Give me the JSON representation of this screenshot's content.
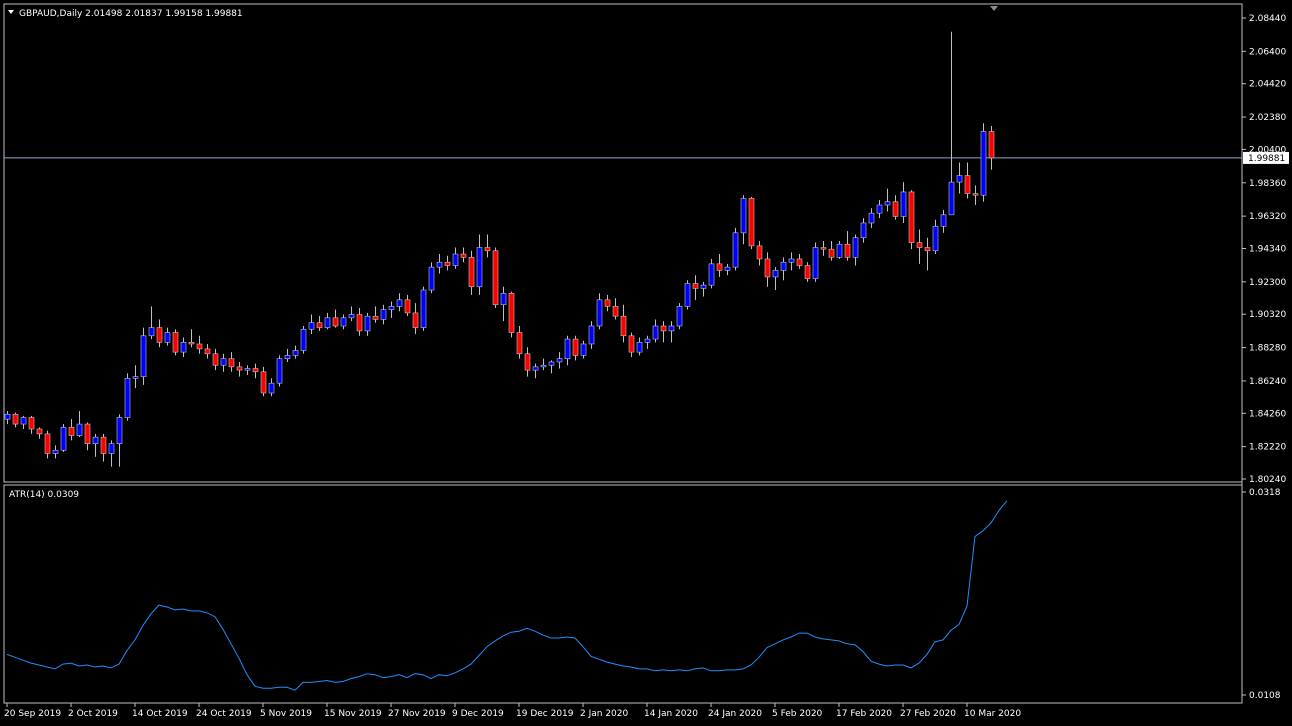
{
  "main_panel": {
    "title": "GBPAUD,Daily  2.01498 2.01837 1.99158 1.99881",
    "collapse_icon": "triangle-down-icon"
  },
  "atr_panel": {
    "title": "ATR(14) 0.0309"
  },
  "colors": {
    "background": "#000000",
    "bull_body": "#0000ff",
    "bear_body": "#ff0000",
    "wick": "#c0c0c0",
    "bid_line": "#8fa6c8",
    "atr_line": "#1e90ff",
    "frame": "#c0c0c0",
    "text": "#ffffff"
  },
  "chart_data": [
    {
      "type": "candlestick",
      "symbol": "GBPAUD",
      "timeframe": "Daily",
      "last_ohlc": [
        2.01498,
        2.01837,
        1.99158,
        1.99881
      ],
      "current_price": 1.99881,
      "current_price_label": "1.99881",
      "ylim": [
        1.8024,
        2.0844
      ],
      "y_ticks": [
        "2.08440",
        "2.06400",
        "2.04420",
        "2.02380",
        "2.00400",
        "1.98360",
        "1.96320",
        "1.94340",
        "1.92300",
        "1.90320",
        "1.88280",
        "1.86240",
        "1.84260",
        "1.82220",
        "1.80240"
      ],
      "x_ticks": [
        "20 Sep 2019",
        "2 Oct 2019",
        "14 Oct 2019",
        "24 Oct 2019",
        "5 Nov 2019",
        "15 Nov 2019",
        "27 Nov 2019",
        "9 Dec 2019",
        "19 Dec 2019",
        "2 Jan 2020",
        "14 Jan 2020",
        "24 Jan 2020",
        "5 Feb 2020",
        "17 Feb 2020",
        "27 Feb 2020",
        "10 Mar 2020"
      ],
      "x_tick_candle_index": [
        0,
        8,
        16,
        24,
        32,
        40,
        48,
        56,
        64,
        72,
        80,
        88,
        96,
        104,
        112,
        120
      ],
      "candles": [
        [
          1.839,
          1.844,
          1.836,
          1.842
        ],
        [
          1.842,
          1.843,
          1.834,
          1.836
        ],
        [
          1.836,
          1.841,
          1.833,
          1.84
        ],
        [
          1.84,
          1.841,
          1.83,
          1.833
        ],
        [
          1.833,
          1.834,
          1.827,
          1.83
        ],
        [
          1.83,
          1.832,
          1.815,
          1.818
        ],
        [
          1.818,
          1.823,
          1.815,
          1.82
        ],
        [
          1.82,
          1.836,
          1.819,
          1.834
        ],
        [
          1.834,
          1.839,
          1.826,
          1.829
        ],
        [
          1.829,
          1.844,
          1.828,
          1.836
        ],
        [
          1.836,
          1.837,
          1.82,
          1.824
        ],
        [
          1.824,
          1.83,
          1.816,
          1.828
        ],
        [
          1.828,
          1.83,
          1.813,
          1.818
        ],
        [
          1.818,
          1.826,
          1.81,
          1.824
        ],
        [
          1.824,
          1.842,
          1.81,
          1.84
        ],
        [
          1.84,
          1.867,
          1.838,
          1.864
        ],
        [
          1.864,
          1.872,
          1.858,
          1.865
        ],
        [
          1.865,
          1.895,
          1.86,
          1.89
        ],
        [
          1.89,
          1.908,
          1.888,
          1.895
        ],
        [
          1.895,
          1.9,
          1.883,
          1.886
        ],
        [
          1.886,
          1.895,
          1.884,
          1.892
        ],
        [
          1.892,
          1.894,
          1.878,
          1.88
        ],
        [
          1.88,
          1.889,
          1.877,
          1.886
        ],
        [
          1.886,
          1.894,
          1.883,
          1.885
        ],
        [
          1.885,
          1.89,
          1.879,
          1.882
        ],
        [
          1.882,
          1.885,
          1.876,
          1.879
        ],
        [
          1.879,
          1.882,
          1.869,
          1.872
        ],
        [
          1.872,
          1.879,
          1.868,
          1.876
        ],
        [
          1.876,
          1.88,
          1.868,
          1.871
        ],
        [
          1.871,
          1.874,
          1.865,
          1.869
        ],
        [
          1.869,
          1.872,
          1.866,
          1.87
        ],
        [
          1.87,
          1.873,
          1.864,
          1.868
        ],
        [
          1.868,
          1.871,
          1.853,
          1.855
        ],
        [
          1.855,
          1.864,
          1.853,
          1.861
        ],
        [
          1.861,
          1.878,
          1.859,
          1.876
        ],
        [
          1.876,
          1.882,
          1.874,
          1.878
        ],
        [
          1.878,
          1.884,
          1.876,
          1.881
        ],
        [
          1.881,
          1.896,
          1.879,
          1.894
        ],
        [
          1.894,
          1.903,
          1.891,
          1.898
        ],
        [
          1.898,
          1.902,
          1.893,
          1.895
        ],
        [
          1.895,
          1.904,
          1.894,
          1.901
        ],
        [
          1.901,
          1.906,
          1.895,
          1.896
        ],
        [
          1.896,
          1.903,
          1.894,
          1.901
        ],
        [
          1.901,
          1.908,
          1.899,
          1.903
        ],
        [
          1.903,
          1.907,
          1.89,
          1.893
        ],
        [
          1.893,
          1.904,
          1.89,
          1.902
        ],
        [
          1.902,
          1.908,
          1.898,
          1.9
        ],
        [
          1.9,
          1.909,
          1.897,
          1.906
        ],
        [
          1.906,
          1.911,
          1.901,
          1.908
        ],
        [
          1.908,
          1.916,
          1.905,
          1.912
        ],
        [
          1.912,
          1.915,
          1.902,
          1.904
        ],
        [
          1.904,
          1.91,
          1.891,
          1.895
        ],
        [
          1.895,
          1.92,
          1.893,
          1.918
        ],
        [
          1.918,
          1.935,
          1.916,
          1.932
        ],
        [
          1.932,
          1.94,
          1.928,
          1.935
        ],
        [
          1.935,
          1.939,
          1.93,
          1.933
        ],
        [
          1.933,
          1.944,
          1.931,
          1.94
        ],
        [
          1.94,
          1.944,
          1.935,
          1.938
        ],
        [
          1.938,
          1.942,
          1.915,
          1.92
        ],
        [
          1.92,
          1.952,
          1.915,
          1.944
        ],
        [
          1.944,
          1.952,
          1.938,
          1.942
        ],
        [
          1.942,
          1.944,
          1.907,
          1.909
        ],
        [
          1.909,
          1.92,
          1.899,
          1.916
        ],
        [
          1.916,
          1.917,
          1.889,
          1.892
        ],
        [
          1.892,
          1.896,
          1.876,
          1.879
        ],
        [
          1.879,
          1.883,
          1.865,
          1.869
        ],
        [
          1.869,
          1.873,
          1.864,
          1.871
        ],
        [
          1.871,
          1.876,
          1.869,
          1.872
        ],
        [
          1.872,
          1.875,
          1.867,
          1.874
        ],
        [
          1.874,
          1.88,
          1.87,
          1.876
        ],
        [
          1.876,
          1.89,
          1.872,
          1.888
        ],
        [
          1.888,
          1.89,
          1.875,
          1.878
        ],
        [
          1.878,
          1.887,
          1.876,
          1.885
        ],
        [
          1.885,
          1.899,
          1.882,
          1.896
        ],
        [
          1.896,
          1.916,
          1.894,
          1.912
        ],
        [
          1.912,
          1.915,
          1.905,
          1.908
        ],
        [
          1.908,
          1.913,
          1.9,
          1.902
        ],
        [
          1.902,
          1.909,
          1.886,
          1.89
        ],
        [
          1.89,
          1.892,
          1.877,
          1.88
        ],
        [
          1.88,
          1.889,
          1.878,
          1.886
        ],
        [
          1.886,
          1.89,
          1.882,
          1.888
        ],
        [
          1.888,
          1.9,
          1.886,
          1.896
        ],
        [
          1.896,
          1.899,
          1.886,
          1.893
        ],
        [
          1.893,
          1.899,
          1.886,
          1.896
        ],
        [
          1.896,
          1.91,
          1.894,
          1.908
        ],
        [
          1.908,
          1.924,
          1.906,
          1.922
        ],
        [
          1.922,
          1.927,
          1.912,
          1.919
        ],
        [
          1.919,
          1.923,
          1.914,
          1.921
        ],
        [
          1.921,
          1.937,
          1.919,
          1.934
        ],
        [
          1.934,
          1.94,
          1.926,
          1.93
        ],
        [
          1.93,
          1.934,
          1.927,
          1.932
        ],
        [
          1.932,
          1.956,
          1.93,
          1.953
        ],
        [
          1.953,
          1.976,
          1.946,
          1.974
        ],
        [
          1.974,
          1.975,
          1.943,
          1.945
        ],
        [
          1.945,
          1.948,
          1.933,
          1.937
        ],
        [
          1.937,
          1.941,
          1.92,
          1.926
        ],
        [
          1.926,
          1.932,
          1.918,
          1.93
        ],
        [
          1.93,
          1.938,
          1.924,
          1.935
        ],
        [
          1.935,
          1.941,
          1.93,
          1.937
        ],
        [
          1.937,
          1.94,
          1.931,
          1.933
        ],
        [
          1.933,
          1.935,
          1.923,
          1.925
        ],
        [
          1.925,
          1.947,
          1.923,
          1.944
        ],
        [
          1.944,
          1.948,
          1.939,
          1.943
        ],
        [
          1.943,
          1.948,
          1.936,
          1.938
        ],
        [
          1.938,
          1.948,
          1.937,
          1.946
        ],
        [
          1.946,
          1.954,
          1.936,
          1.938
        ],
        [
          1.938,
          1.952,
          1.933,
          1.95
        ],
        [
          1.95,
          1.962,
          1.947,
          1.959
        ],
        [
          1.959,
          1.968,
          1.956,
          1.965
        ],
        [
          1.965,
          1.973,
          1.962,
          1.97
        ],
        [
          1.97,
          1.98,
          1.966,
          1.972
        ],
        [
          1.972,
          1.976,
          1.961,
          1.963
        ],
        [
          1.963,
          1.984,
          1.959,
          1.978
        ],
        [
          1.978,
          1.979,
          1.943,
          1.947
        ],
        [
          1.947,
          1.955,
          1.934,
          1.944
        ],
        [
          1.944,
          1.95,
          1.93,
          1.942
        ],
        [
          1.942,
          1.961,
          1.94,
          1.957
        ],
        [
          1.957,
          1.967,
          1.953,
          1.964
        ],
        [
          1.964,
          2.076,
          1.965,
          1.984
        ],
        [
          1.984,
          1.996,
          1.977,
          1.988
        ],
        [
          1.988,
          1.996,
          1.974,
          1.977
        ],
        [
          1.977,
          1.982,
          1.97,
          1.976
        ],
        [
          1.976,
          2.02,
          1.972,
          2.015
        ],
        [
          2.01498,
          2.01837,
          1.99158,
          1.99881
        ]
      ]
    },
    {
      "type": "line",
      "name": "ATR(14)",
      "current_value": 0.0309,
      "ylim": [
        0.0108,
        0.0318
      ],
      "y_ticks": [
        "0.0318",
        "0.0108"
      ],
      "values": [
        0.015,
        0.0147,
        0.0144,
        0.0141,
        0.0139,
        0.0137,
        0.0135,
        0.014,
        0.0141,
        0.0138,
        0.0139,
        0.0137,
        0.0138,
        0.0136,
        0.014,
        0.0154,
        0.0165,
        0.018,
        0.0192,
        0.0201,
        0.0199,
        0.0196,
        0.0197,
        0.0195,
        0.0195,
        0.0193,
        0.0189,
        0.0176,
        0.0161,
        0.0146,
        0.0129,
        0.0117,
        0.0115,
        0.0115,
        0.0116,
        0.0116,
        0.0113,
        0.0121,
        0.0121,
        0.0122,
        0.0123,
        0.0121,
        0.0122,
        0.0125,
        0.0127,
        0.013,
        0.0129,
        0.0126,
        0.0127,
        0.0129,
        0.0126,
        0.013,
        0.0129,
        0.0125,
        0.0129,
        0.0128,
        0.0131,
        0.0135,
        0.014,
        0.0149,
        0.0158,
        0.0164,
        0.0169,
        0.0173,
        0.0174,
        0.0177,
        0.0174,
        0.017,
        0.0167,
        0.0167,
        0.0168,
        0.0167,
        0.0158,
        0.0148,
        0.0145,
        0.0142,
        0.014,
        0.0138,
        0.0137,
        0.0135,
        0.0135,
        0.0133,
        0.0134,
        0.0133,
        0.0134,
        0.0133,
        0.0135,
        0.0136,
        0.0133,
        0.0133,
        0.0134,
        0.0134,
        0.0135,
        0.0139,
        0.0147,
        0.0157,
        0.0161,
        0.0165,
        0.0168,
        0.0172,
        0.0172,
        0.0168,
        0.0166,
        0.0165,
        0.0164,
        0.0161,
        0.016,
        0.0153,
        0.0143,
        0.014,
        0.0138,
        0.0139,
        0.0139,
        0.0136,
        0.0141,
        0.015,
        0.0163,
        0.0165,
        0.0175,
        0.0181,
        0.02,
        0.0272,
        0.0278,
        0.0286,
        0.0299,
        0.0309
      ]
    }
  ]
}
